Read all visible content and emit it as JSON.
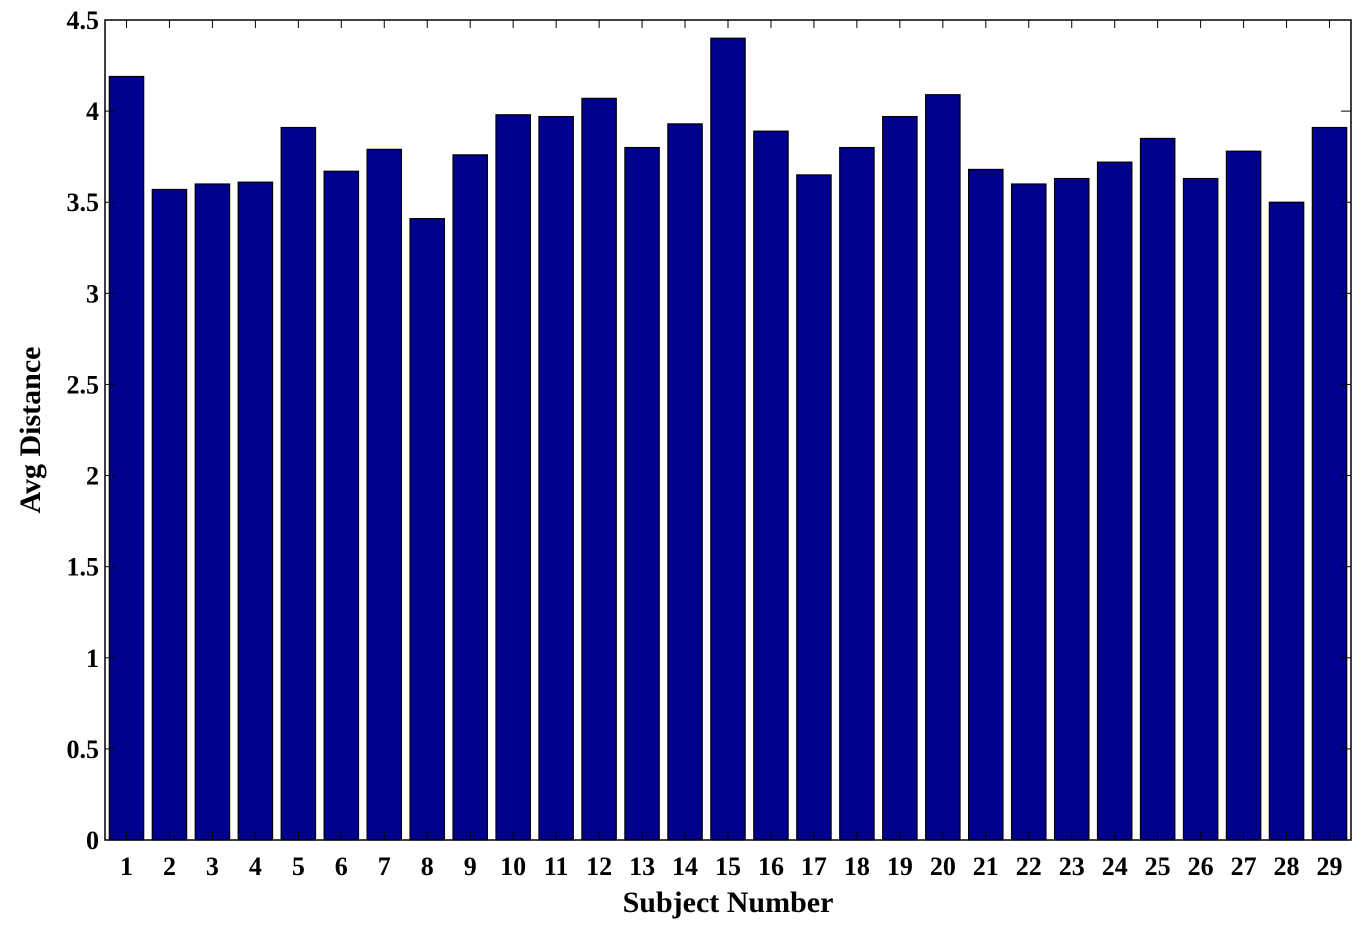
{
  "chart_data": {
    "type": "bar",
    "title": "",
    "xlabel": "Subject Number",
    "ylabel": "Avg Distance",
    "categories": [
      "1",
      "2",
      "3",
      "4",
      "5",
      "6",
      "7",
      "8",
      "9",
      "10",
      "11",
      "12",
      "13",
      "14",
      "15",
      "16",
      "17",
      "18",
      "19",
      "20",
      "21",
      "22",
      "23",
      "24",
      "25",
      "26",
      "27",
      "28",
      "29"
    ],
    "values": [
      4.19,
      3.57,
      3.6,
      3.61,
      3.91,
      3.67,
      3.79,
      3.41,
      3.76,
      3.98,
      3.97,
      4.07,
      3.8,
      3.93,
      4.4,
      3.89,
      3.65,
      3.8,
      3.97,
      4.09,
      3.68,
      3.6,
      3.63,
      3.72,
      3.85,
      3.63,
      3.78,
      3.5,
      3.91
    ],
    "ylim": [
      0,
      4.5
    ],
    "yticks": [
      "0",
      "0.5",
      "1",
      "1.5",
      "2",
      "2.5",
      "3",
      "3.5",
      "4",
      "4.5"
    ],
    "grid": false,
    "colors": {
      "bar": "#00008f",
      "bar_edge": "#000000"
    }
  }
}
